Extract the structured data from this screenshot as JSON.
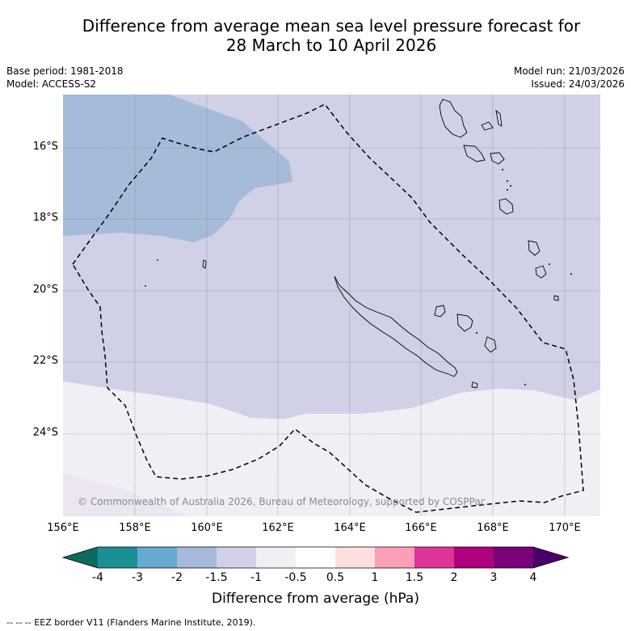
{
  "title": {
    "line1": "Difference from average mean sea level pressure forecast for",
    "line2": "28 March to 10 April 2026"
  },
  "meta": {
    "base_period": "Base period: 1981-2018",
    "model": "Model: ACCESS-S2",
    "model_run": "Model run: 21/03/2026",
    "issued": "Issued: 24/03/2026"
  },
  "latitudes": [
    "16°S",
    "18°S",
    "20°S",
    "22°S",
    "24°S"
  ],
  "longitudes": [
    "156°E",
    "158°E",
    "160°E",
    "162°E",
    "164°E",
    "166°E",
    "168°E",
    "170°E"
  ],
  "copyright": "© Commonwealth of Australia 2026, Bureau of Meteorology, supported by COSPPac",
  "colorbar": {
    "ticks": [
      "-4",
      "-3",
      "-2",
      "-1.5",
      "-1",
      "-0.5",
      "0.5",
      "1",
      "1.5",
      "2",
      "3",
      "4"
    ],
    "colors": [
      "#1a8f94",
      "#67a9cf",
      "#a6bbd9",
      "#d0d1e6",
      "#f2eef6",
      "#ffffff",
      "#fde0dd",
      "#fa9fb5",
      "#dd3497",
      "#ae017e",
      "#7a0177"
    ],
    "under_color": "#0b6b5e",
    "over_color": "#49006a",
    "label": "Difference from average (hPa)"
  },
  "footer": "--  --  -- EEZ border V11 (Flanders Marine Institute, 2019)."
}
